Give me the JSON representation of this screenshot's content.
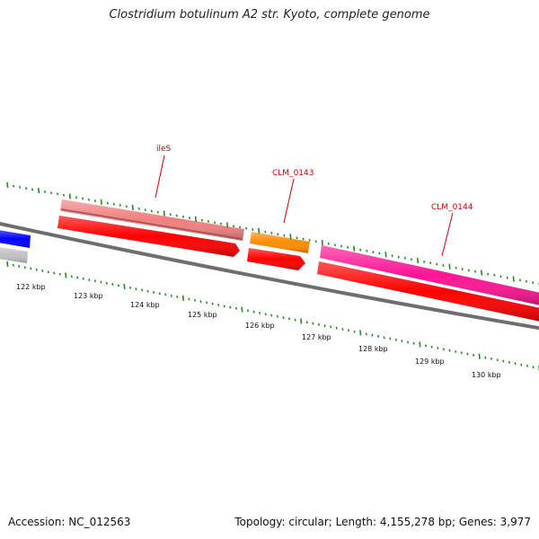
{
  "title": "Clostridium botulinum A2 str. Kyoto, complete genome",
  "footer": {
    "accession": "Accession: NC_012563",
    "summary": "Topology: circular; Length: 4,155,278 bp; Genes: 3,977"
  },
  "ruler": {
    "unit": "kbp",
    "labels": [
      "122 kbp",
      "123 kbp",
      "124 kbp",
      "125 kbp",
      "126 kbp",
      "127 kbp",
      "128 kbp",
      "129 kbp",
      "130 kbp"
    ]
  },
  "genes": [
    {
      "name": "ileS",
      "color": "#f08080",
      "strand": "forward"
    },
    {
      "name": "CLM_0143",
      "color": "#ff8c00",
      "strand": "forward"
    },
    {
      "name": "CLM_0144",
      "color": "#ff1493",
      "strand": "forward"
    }
  ],
  "colors": {
    "backbone": "#808080",
    "cds": "#ff0000",
    "tick": "#228b22",
    "label": "#cc0000",
    "left_feature_blue": "#0000ff",
    "left_feature_gray": "#c0c0c0"
  }
}
